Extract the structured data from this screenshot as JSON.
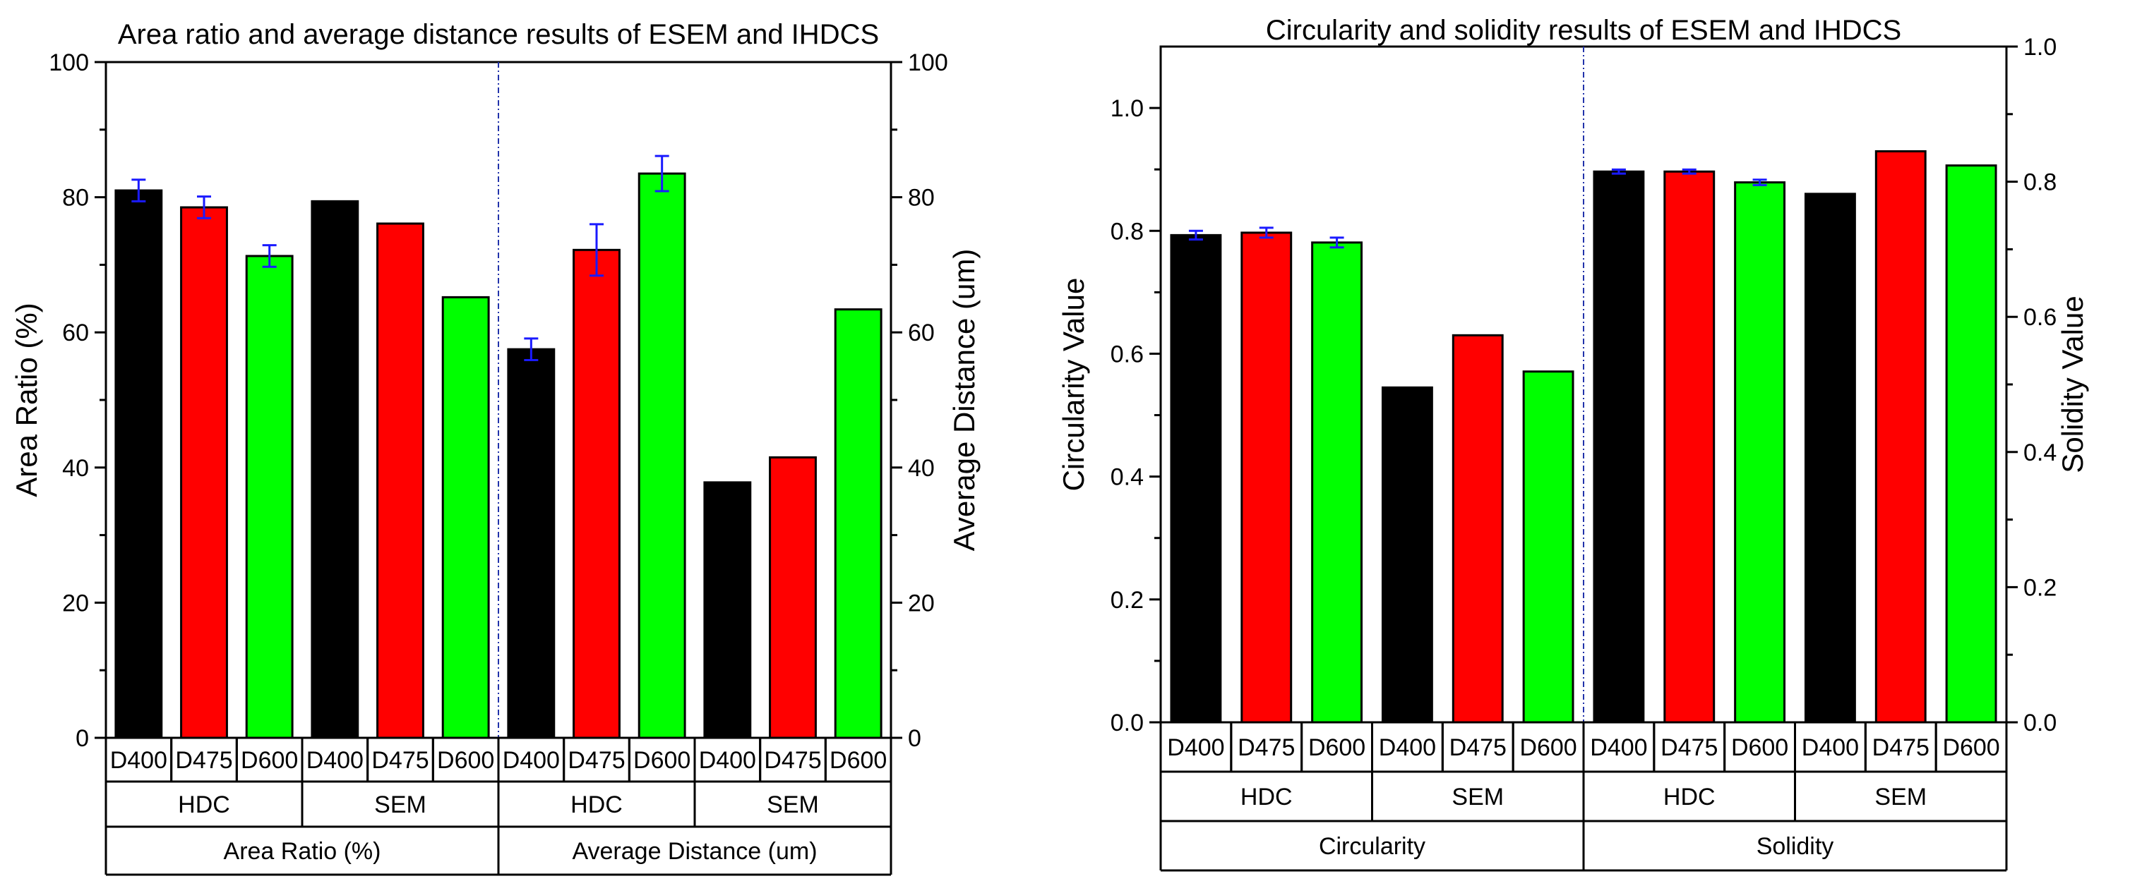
{
  "chart_data": [
    {
      "type": "bar",
      "title": "Area ratio and average distance results of ESEM and IHDCS",
      "ylabel": "Area Ratio (%)",
      "y2label": "Average Distance (um)",
      "ylim": [
        0,
        100
      ],
      "yticks": [
        "0",
        "20",
        "40",
        "60",
        "80",
        "100"
      ],
      "y2lim": [
        0,
        100
      ],
      "y2ticks": [
        "0",
        "20",
        "40",
        "60",
        "80",
        "100"
      ],
      "categories": [
        "D400",
        "D475",
        "D600",
        "D400",
        "D475",
        "D600",
        "D400",
        "D475",
        "D600",
        "D400",
        "D475",
        "D600"
      ],
      "groups": [
        "HDC",
        "SEM",
        "HDC",
        "SEM"
      ],
      "metrics": [
        "Area Ratio (%)",
        "Average Distance (um)"
      ],
      "values": [
        81,
        78.5,
        71.3,
        79.4,
        76.1,
        65.2,
        57.5,
        72.2,
        83.5,
        37.8,
        41.5,
        63.4
      ],
      "errors": [
        1.6,
        1.6,
        1.6,
        0,
        0,
        0,
        1.6,
        3.8,
        2.6,
        0,
        0,
        0
      ],
      "colors": [
        "#000000",
        "#ff0000",
        "#00ff00",
        "#000000",
        "#ff0000",
        "#00ff00",
        "#000000",
        "#ff0000",
        "#00ff00",
        "#000000",
        "#ff0000",
        "#00ff00"
      ]
    },
    {
      "type": "bar",
      "title": "Circularity and solidity results of ESEM and IHDCS",
      "ylabel": "Circularity Value",
      "y2label": "Solidity Value",
      "ylim": [
        0,
        1.1
      ],
      "yticks": [
        "0.0",
        "0.2",
        "0.4",
        "0.6",
        "0.8",
        "1.0"
      ],
      "y2lim": [
        0,
        1.0
      ],
      "y2ticks": [
        "0.0",
        "0.2",
        "0.4",
        "0.6",
        "0.8",
        "1.0"
      ],
      "categories": [
        "D400",
        "D475",
        "D600",
        "D400",
        "D475",
        "D600",
        "D400",
        "D475",
        "D600",
        "D400",
        "D475",
        "D600"
      ],
      "groups": [
        "HDC",
        "SEM",
        "HDC",
        "SEM"
      ],
      "metrics": [
        "Circularity",
        "Solidity"
      ],
      "values": [
        0.793,
        0.797,
        0.781,
        0.545,
        0.63,
        0.571,
        0.815,
        0.815,
        0.799,
        0.782,
        0.845,
        0.824
      ],
      "errors": [
        0.007,
        0.008,
        0.008,
        0,
        0,
        0,
        0.003,
        0.003,
        0.004,
        0,
        0,
        0
      ],
      "colors": [
        "#000000",
        "#ff0000",
        "#00ff00",
        "#000000",
        "#ff0000",
        "#00ff00",
        "#000000",
        "#ff0000",
        "#00ff00",
        "#000000",
        "#ff0000",
        "#00ff00"
      ]
    }
  ]
}
